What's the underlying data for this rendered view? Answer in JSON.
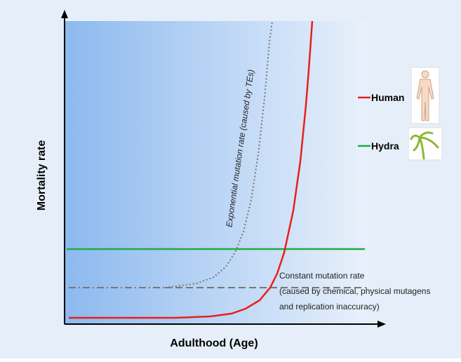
{
  "axes": {
    "y_label": "Mortality rate",
    "x_label": "Adulthood (Age)"
  },
  "annotations": {
    "exponential": "Exponential mutation rate (caused by TEs)",
    "constant": [
      "Constant mutation rate",
      "(caused by chemical, physical mutagens",
      "and replication inaccuracy)"
    ]
  },
  "legend": [
    {
      "name": "Human"
    },
    {
      "name": "Hydra"
    }
  ]
}
